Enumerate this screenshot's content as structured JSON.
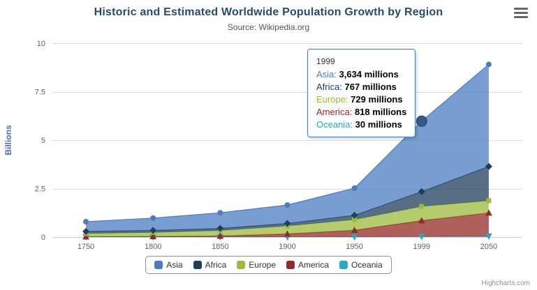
{
  "chart_data": {
    "type": "area",
    "stacking": "normal",
    "title": "Historic and Estimated Worldwide Population Growth by Region",
    "subtitle": "Source: Wikipedia.org",
    "categories": [
      "1750",
      "1800",
      "1850",
      "1900",
      "1950",
      "1999",
      "2050"
    ],
    "series": [
      {
        "name": "Asia",
        "color": "#4B7CC0",
        "marker": "circle",
        "values": [
          502,
          635,
          809,
          947,
          1402,
          3634,
          5268
        ]
      },
      {
        "name": "Africa",
        "color": "#1F3D5C",
        "marker": "diamond",
        "values": [
          106,
          107,
          111,
          133,
          221,
          767,
          1766
        ]
      },
      {
        "name": "Europe",
        "color": "#9BBB3C",
        "marker": "square",
        "values": [
          163,
          203,
          276,
          408,
          547,
          729,
          628
        ]
      },
      {
        "name": "America",
        "color": "#942A25",
        "marker": "triangle",
        "values": [
          18,
          31,
          54,
          156,
          339,
          818,
          1201
        ]
      },
      {
        "name": "Oceania",
        "color": "#2BA6C7",
        "marker": "triangle-down",
        "values": [
          2,
          2,
          2,
          6,
          13,
          30,
          46
        ]
      }
    ],
    "value_unit": "millions",
    "ylabel": "Billions",
    "ylim": [
      0,
      10
    ],
    "yticks": [
      0,
      2.5,
      5,
      7.5,
      10
    ],
    "ytick_labels": [
      "0",
      "2.5",
      "5",
      "7.5",
      "10"
    ],
    "grid": true,
    "legend_position": "bottom",
    "hover": {
      "category": "1999",
      "series": "Asia",
      "stack_total_billions": 5.978
    }
  },
  "tooltip": {
    "header": "1999",
    "rows": [
      {
        "name": "Asia",
        "value": "3,634 millions"
      },
      {
        "name": "Africa",
        "value": "767 millions"
      },
      {
        "name": "Europe",
        "value": "729 millions"
      },
      {
        "name": "America",
        "value": "818 millions"
      },
      {
        "name": "Oceania",
        "value": "30 millions"
      }
    ]
  },
  "credits": {
    "label": "Highcharts.com"
  }
}
